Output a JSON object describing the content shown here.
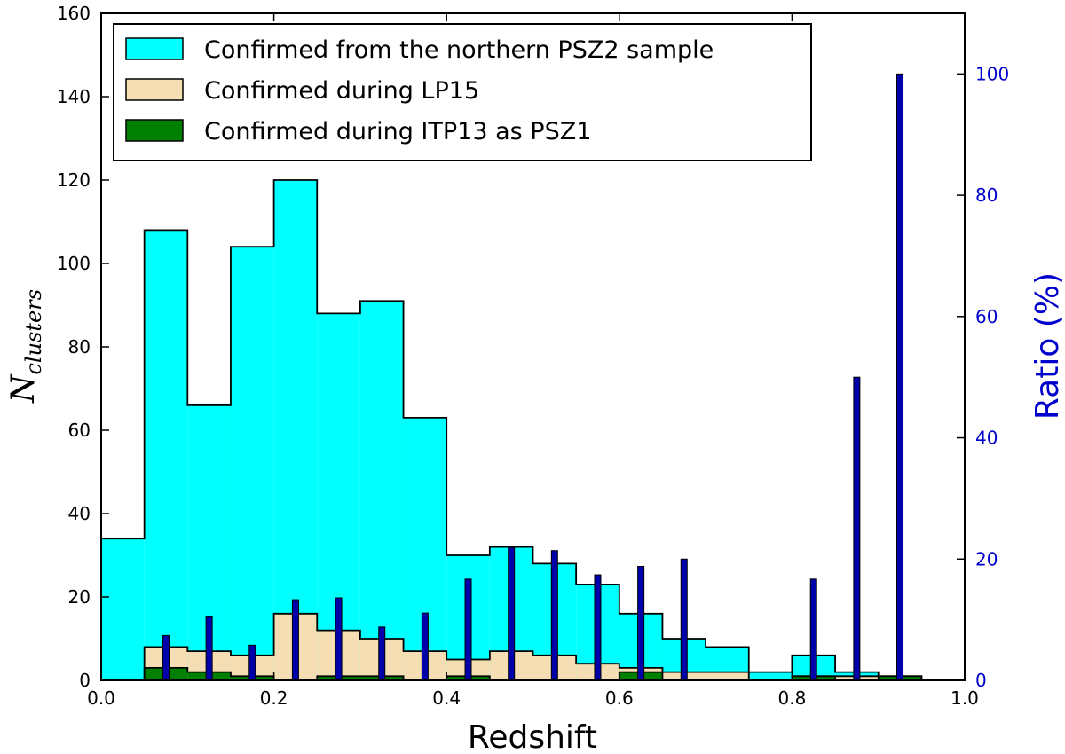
{
  "chart_data": {
    "type": "bar",
    "xlabel": "Redshift",
    "ylabel_main": "N",
    "ylabel_sub": "clusters",
    "y2label": "Ratio (%)",
    "xlim": [
      0.0,
      1.0
    ],
    "ylim": [
      0,
      160
    ],
    "y2lim": [
      0,
      110
    ],
    "x_ticks": [
      "0.0",
      "0.2",
      "0.4",
      "0.6",
      "0.8",
      "1.0"
    ],
    "y_ticks": [
      "0",
      "20",
      "40",
      "60",
      "80",
      "100",
      "120",
      "140",
      "160"
    ],
    "y2_ticks": [
      "0",
      "20",
      "40",
      "60",
      "80",
      "100"
    ],
    "bin_edges": [
      0.0,
      0.05,
      0.1,
      0.15,
      0.2,
      0.25,
      0.3,
      0.35,
      0.4,
      0.45,
      0.5,
      0.55,
      0.6,
      0.65,
      0.7,
      0.75,
      0.8,
      0.85,
      0.9,
      0.95,
      1.0
    ],
    "legend_position": "top-left",
    "series": [
      {
        "name": "Confirmed from the northern PSZ2 sample",
        "color": "#00ffff",
        "values": [
          34,
          108,
          66,
          104,
          120,
          88,
          91,
          63,
          30,
          32,
          28,
          23,
          16,
          10,
          8,
          2,
          6,
          2,
          0,
          0
        ]
      },
      {
        "name": "Confirmed during LP15",
        "color": "#f5deb3",
        "values": [
          0,
          8,
          7,
          6,
          16,
          12,
          10,
          7,
          5,
          7,
          6,
          4,
          3,
          2,
          2,
          0,
          1,
          1,
          1,
          0
        ]
      },
      {
        "name": "Confirmed during ITP13 as PSZ1",
        "color": "#008000",
        "values": [
          0,
          3,
          2,
          1,
          0,
          1,
          1,
          0,
          1,
          0,
          0,
          0,
          2,
          0,
          0,
          0,
          1,
          0,
          1,
          0
        ]
      }
    ],
    "ratio": {
      "name": "Ratio (%)",
      "color": "#0000aa",
      "x": [
        0.075,
        0.125,
        0.175,
        0.225,
        0.275,
        0.325,
        0.375,
        0.425,
        0.475,
        0.525,
        0.575,
        0.625,
        0.675,
        0.825,
        0.875,
        0.925
      ],
      "values": [
        7.4,
        10.6,
        5.8,
        13.3,
        13.6,
        8.8,
        11.1,
        16.7,
        21.9,
        21.4,
        17.4,
        18.8,
        20.0,
        16.7,
        50.0,
        100.0
      ]
    }
  }
}
